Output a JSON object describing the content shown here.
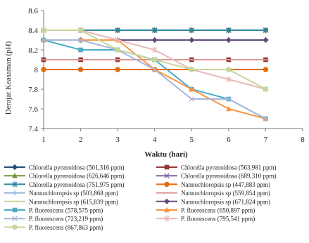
{
  "chart_data": {
    "type": "line",
    "xlabel": "Waktu (hari)",
    "ylabel": "Derajat Keasaman (pH)",
    "x": [
      1,
      2,
      3,
      4,
      5,
      6,
      7
    ],
    "xlim": [
      1,
      8
    ],
    "xticks": [
      "1",
      "2",
      "3",
      "4",
      "5",
      "6",
      "7",
      "8"
    ],
    "ylim": [
      7.4,
      8.6
    ],
    "yticks": [
      "7.4",
      "7.6",
      "7.8",
      "8",
      "8.2",
      "8.4",
      "8.6"
    ],
    "grid": false,
    "legend_position": "bottom",
    "series": [
      {
        "name": "Chlorella pyrenoidosa (501,316 ppm)",
        "color": "#1f4e79",
        "marker": "diamond",
        "values": [
          8.4,
          8.4,
          8.4,
          8.4,
          8.4,
          8.4,
          8.4
        ]
      },
      {
        "name": "Chlorella pyrenoidosa (563,981 ppm)",
        "color": "#953735",
        "marker": "square",
        "values": [
          8.1,
          8.1,
          8.1,
          8.1,
          8.1,
          8.1,
          8.1
        ]
      },
      {
        "name": "Chlorella pyrenoidosa (626,646 ppm)",
        "color": "#77933c",
        "marker": "triangle",
        "values": [
          8.4,
          8.4,
          8.4,
          8.4,
          8.4,
          8.4,
          8.4
        ]
      },
      {
        "name": "Chlorella pyrenoidosa (689,310 ppm)",
        "color": "#8064a2",
        "marker": "x",
        "values": [
          8.4,
          8.4,
          8.4,
          8.4,
          8.4,
          8.4,
          8.4
        ]
      },
      {
        "name": "Chlorella pyrenoidosa (751,975 ppm)",
        "color": "#31859c",
        "marker": "star",
        "values": [
          8.4,
          8.4,
          8.4,
          8.4,
          8.4,
          8.4,
          8.4
        ]
      },
      {
        "name": "Nannochloropsis sp (447,883 ppm)",
        "color": "#e46c0a",
        "marker": "circle",
        "values": [
          8.0,
          8.0,
          8.0,
          8.0,
          8.0,
          8.0,
          8.0
        ]
      },
      {
        "name": "Nannochloropsis sp (503,868 ppm)",
        "color": "#95b3d7",
        "marker": "plus",
        "values": [
          8.3,
          8.3,
          8.3,
          8.3,
          8.3,
          8.3,
          8.3
        ]
      },
      {
        "name": "Nannochloropsis sp (559,854 ppm)",
        "color": "#d99694",
        "marker": "dash",
        "values": [
          8.1,
          8.1,
          8.1,
          8.1,
          8.1,
          8.1,
          8.1
        ]
      },
      {
        "name": "Nannochloropsis sp (615,839 ppm)",
        "color": "#c3d69b",
        "marker": "dash",
        "values": [
          8.3,
          8.3,
          8.3,
          8.3,
          8.3,
          8.3,
          8.3
        ]
      },
      {
        "name": "Nannochloropsis sp (671,824 ppm)",
        "color": "#604a7b",
        "marker": "diamond",
        "values": [
          8.3,
          8.3,
          8.3,
          8.3,
          8.3,
          8.3,
          8.3
        ]
      },
      {
        "name": "P. fluorescens (578,575 ppm)",
        "color": "#4bacc6",
        "marker": "square",
        "values": [
          8.3,
          8.2,
          8.2,
          8.1,
          7.8,
          7.7,
          7.5
        ]
      },
      {
        "name": "P. fluorescens (650,897 ppm)",
        "color": "#f79646",
        "marker": "triangle",
        "values": [
          8.3,
          8.3,
          8.3,
          8.0,
          7.8,
          7.6,
          7.5
        ]
      },
      {
        "name": "P. fluorescens (723,219 ppm)",
        "color": "#a6b6d8",
        "marker": "x",
        "values": [
          8.3,
          8.3,
          8.2,
          8.0,
          7.7,
          7.7,
          7.5
        ]
      },
      {
        "name": "P. fluorescens (795,541 ppm)",
        "color": "#e6b9b8",
        "marker": "star",
        "values": [
          8.4,
          8.4,
          8.3,
          8.2,
          8.0,
          7.9,
          7.8
        ]
      },
      {
        "name": "P. fluorescens (867,863 ppm)",
        "color": "#c4d79b",
        "marker": "circle",
        "values": [
          8.4,
          8.4,
          8.2,
          8.1,
          8.0,
          8.0,
          7.8
        ]
      }
    ]
  }
}
